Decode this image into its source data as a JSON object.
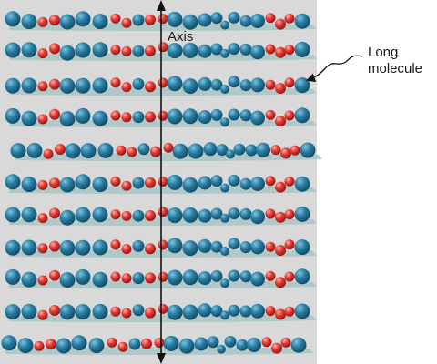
{
  "labels": {
    "axis": "Axis",
    "long_line1": "Long",
    "long_line2": "molecule"
  },
  "colors": {
    "panel": "#d9d9d9",
    "shadow": "#a9c4c4",
    "blue_atom": "#1f6f92",
    "red_atom": "#d42a2a",
    "axis_line": "#111111",
    "text": "#1a1a1a"
  },
  "molecule_count": 11
}
